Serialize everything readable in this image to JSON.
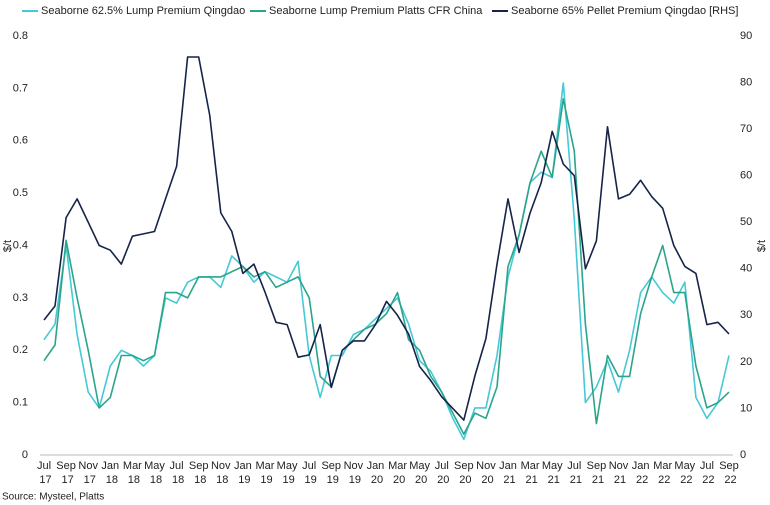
{
  "chart_data": {
    "type": "line",
    "y_label": "$/t",
    "y2_label": "$/t",
    "source": "Source: Mysteel, Platts",
    "categories": [
      "Jul 17",
      null,
      "Sep 17",
      null,
      "Nov 17",
      null,
      "Jan 18",
      null,
      "Mar 18",
      null,
      "May 18",
      null,
      "Jul 18",
      null,
      "Sep 18",
      null,
      "Nov 18",
      null,
      "Jan 19",
      null,
      "Mar 19",
      null,
      "May 19",
      null,
      "Jul 19",
      null,
      "Sep 19",
      null,
      "Nov 19",
      null,
      "Jan 20",
      null,
      "Mar 20",
      null,
      "May 20",
      null,
      "Jul 20",
      null,
      "Sep 20",
      null,
      "Nov 20",
      null,
      "Jan 21",
      null,
      "Mar 21",
      null,
      "May 21",
      null,
      "Jul 21",
      null,
      "Sep 21",
      null,
      "Nov 21",
      null,
      "Jan 22",
      null,
      "Mar 22",
      null,
      "May 22",
      null,
      "Jul 22",
      null,
      "Sep 22"
    ],
    "series": [
      {
        "name": "Seaborne 62.5% Lump Premium Qingdao",
        "color": "#45c9d6",
        "values": [
          0.22,
          0.25,
          0.4,
          0.23,
          0.12,
          0.09,
          0.17,
          0.2,
          0.19,
          0.17,
          0.19,
          0.3,
          0.29,
          0.33,
          0.34,
          0.34,
          0.32,
          0.38,
          0.36,
          0.33,
          0.35,
          0.34,
          0.33,
          0.37,
          0.19,
          0.11,
          0.19,
          0.19,
          0.23,
          0.24,
          0.26,
          0.28,
          0.3,
          0.25,
          0.18,
          0.16,
          0.12,
          0.07,
          0.03,
          0.09,
          0.09,
          0.19,
          0.34,
          0.42,
          0.52,
          0.54,
          0.53,
          0.71,
          0.45,
          0.1,
          0.13,
          0.18,
          0.12,
          0.2,
          0.31,
          0.34,
          0.31,
          0.29,
          0.33,
          0.11,
          0.07,
          0.1,
          0.19
        ]
      },
      {
        "name": "Seaborne Lump Premium Platts CFR China",
        "color": "#2ba58a",
        "values": [
          0.18,
          0.21,
          0.41,
          0.3,
          0.2,
          0.09,
          0.11,
          0.19,
          0.19,
          0.18,
          0.19,
          0.31,
          0.31,
          0.3,
          0.34,
          0.34,
          0.34,
          0.35,
          0.36,
          0.34,
          0.35,
          0.32,
          0.33,
          0.34,
          0.3,
          0.15,
          0.13,
          0.2,
          0.22,
          0.24,
          0.25,
          0.27,
          0.31,
          0.22,
          0.2,
          0.15,
          0.12,
          0.08,
          0.04,
          0.08,
          0.07,
          0.13,
          0.36,
          0.42,
          0.52,
          0.58,
          0.53,
          0.68,
          0.58,
          0.25,
          0.06,
          0.19,
          0.15,
          0.15,
          0.27,
          0.34,
          0.4,
          0.31,
          0.31,
          0.17,
          0.09,
          0.1,
          0.12
        ]
      },
      {
        "name": "Seaborne 65% Pellet Premium Qingdao [RHS]",
        "color": "#16244a",
        "axis": "y2",
        "values": [
          29,
          32,
          51,
          55,
          50,
          45,
          44,
          41,
          47,
          47.5,
          48,
          55,
          62,
          85.5,
          85.5,
          73,
          52,
          48,
          39,
          41,
          35,
          28.5,
          28,
          21,
          21.5,
          28,
          14.5,
          22.5,
          24.5,
          24.5,
          28,
          33,
          30,
          26,
          19,
          16,
          12.5,
          10,
          7.5,
          17,
          25,
          41,
          55,
          43.5,
          52,
          58.5,
          69.5,
          62.5,
          60,
          40,
          46,
          70.5,
          55,
          56,
          59,
          55.5,
          53,
          45,
          40.5,
          39,
          28,
          28.5,
          26
        ]
      }
    ],
    "ylim": [
      0,
      0.8
    ],
    "yticks": [
      0,
      0.1,
      0.2,
      0.3,
      0.4,
      0.5,
      0.6,
      0.7,
      0.8
    ],
    "y2lim": [
      0,
      90
    ],
    "y2ticks": [
      0,
      10,
      20,
      30,
      40,
      50,
      60,
      70,
      80,
      90
    ],
    "legend": "top",
    "grid": false
  }
}
